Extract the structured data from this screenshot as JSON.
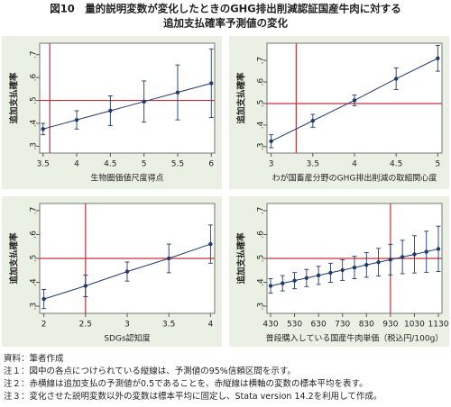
{
  "title_lines": [
    "図10　量的説明変数が変化したときのGHG排出削減認証国産牛肉に対する",
    "追加支払確率予測値の変化"
  ],
  "notes": [
    "資料：筆者作成",
    "注１：図中の各点につけられている縦線は、予測値の95%信頼区間を示す。",
    "注２：赤横線は追加支払の予測値が0.5であることを、赤縦線は横軸の変数の標本平均を表す。",
    "注３：変化させた説明変数以外の変数は標本平均に固定し、Stata version 14.2を利用して作成。"
  ],
  "chart_data": [
    {
      "type": "errorbar",
      "xlabel": "生物圏価値尺度得点",
      "ylabel": "追加支払確率",
      "color": "#1f3a6b",
      "ref_color": "#c0303a",
      "background": "#eaf0e3",
      "x": [
        3.5,
        4,
        4.5,
        5,
        5.5,
        6
      ],
      "values": [
        0.375,
        0.415,
        0.455,
        0.495,
        0.535,
        0.575
      ],
      "errors": [
        0.025,
        0.04,
        0.065,
        0.09,
        0.12,
        0.15
      ],
      "xlim": [
        3.45,
        6.05
      ],
      "xticks": [
        3.5,
        4,
        4.5,
        5,
        5.5,
        6
      ],
      "ylim": [
        0.27,
        0.75
      ],
      "yticks": [
        {
          "value": 0.3,
          "label": ".3"
        },
        {
          "value": 0.4,
          "label": ".4"
        },
        {
          "value": 0.5,
          "label": ".5"
        },
        {
          "value": 0.6,
          "label": ".6"
        },
        {
          "value": 0.7,
          "label": ".7"
        }
      ],
      "vline": 3.6,
      "hline": 0.5
    },
    {
      "type": "errorbar",
      "xlabel": "わが国畜産分野のGHG排出削減の取組関心度",
      "ylabel": "追加支払確率",
      "color": "#1f3a6b",
      "ref_color": "#c0303a",
      "background": "#eaf0e3",
      "x": [
        3,
        3.5,
        4,
        4.5,
        5
      ],
      "values": [
        0.325,
        0.42,
        0.515,
        0.615,
        0.71
      ],
      "errors": [
        0.03,
        0.03,
        0.025,
        0.05,
        0.06
      ],
      "xlim": [
        2.95,
        5.05
      ],
      "xticks": [
        3,
        3.5,
        4,
        4.5,
        5
      ],
      "ylim": [
        0.27,
        0.78
      ],
      "yticks": [
        {
          "value": 0.3,
          "label": ".3"
        },
        {
          "value": 0.4,
          "label": ".4"
        },
        {
          "value": 0.5,
          "label": ".5"
        },
        {
          "value": 0.6,
          "label": ".6"
        },
        {
          "value": 0.7,
          "label": ".7"
        }
      ],
      "vline": 3.3,
      "hline": 0.5
    },
    {
      "type": "errorbar",
      "xlabel": "SDGs認知度",
      "ylabel": "追加支払確率",
      "color": "#1f3a6b",
      "ref_color": "#c0303a",
      "background": "#eaf0e3",
      "x": [
        2,
        2.5,
        3,
        3.5,
        4
      ],
      "values": [
        0.33,
        0.385,
        0.445,
        0.5,
        0.56
      ],
      "errors": [
        0.04,
        0.045,
        0.04,
        0.06,
        0.08
      ],
      "xlim": [
        1.95,
        4.05
      ],
      "xticks": [
        2,
        2.5,
        3,
        3.5,
        4
      ],
      "ylim": [
        0.27,
        0.73
      ],
      "yticks": [
        {
          "value": 0.3,
          "label": ".3"
        },
        {
          "value": 0.4,
          "label": ".4"
        },
        {
          "value": 0.5,
          "label": ".5"
        },
        {
          "value": 0.6,
          "label": ".6"
        },
        {
          "value": 0.7,
          "label": ".7"
        }
      ],
      "vline": 2.5,
      "hline": 0.5
    },
    {
      "type": "errorbar",
      "xlabel": "普段購入している国産牛肉単価（税込円/100g）",
      "ylabel": "追加支払確率",
      "color": "#1f3a6b",
      "ref_color": "#c0303a",
      "background": "#eaf0e3",
      "x": [
        430,
        480,
        530,
        580,
        630,
        680,
        730,
        780,
        830,
        880,
        930,
        980,
        1030,
        1080,
        1130
      ],
      "values": [
        0.385,
        0.396,
        0.407,
        0.418,
        0.429,
        0.44,
        0.451,
        0.462,
        0.473,
        0.484,
        0.495,
        0.506,
        0.517,
        0.528,
        0.54
      ],
      "errors": [
        0.03,
        0.032,
        0.034,
        0.036,
        0.038,
        0.04,
        0.043,
        0.047,
        0.052,
        0.058,
        0.064,
        0.07,
        0.078,
        0.086,
        0.095
      ],
      "xlim": [
        415,
        1145
      ],
      "xticks": [
        430,
        530,
        630,
        730,
        830,
        930,
        1030,
        1130
      ],
      "ylim": [
        0.27,
        0.73
      ],
      "yticks": [
        {
          "value": 0.3,
          "label": ".3"
        },
        {
          "value": 0.4,
          "label": ".4"
        },
        {
          "value": 0.5,
          "label": ".5"
        },
        {
          "value": 0.6,
          "label": ".6"
        },
        {
          "value": 0.7,
          "label": ".7"
        }
      ],
      "vline": 930,
      "hline": 0.5
    }
  ]
}
